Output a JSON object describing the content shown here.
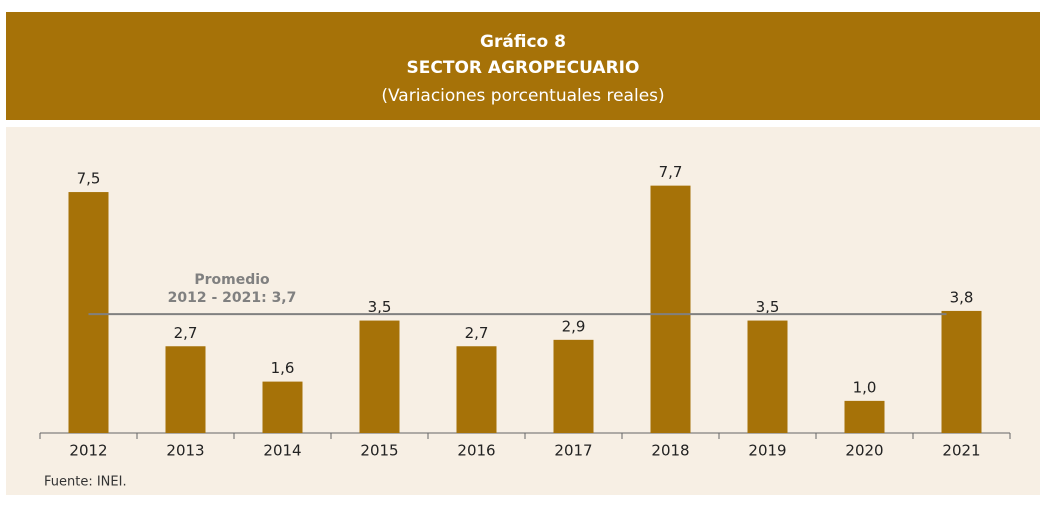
{
  "chart_data": {
    "type": "bar",
    "title": "Gráfico 8",
    "subtitle": "SECTOR AGROPECUARIO",
    "subtitle2": "(Variaciones porcentuales reales)",
    "categories": [
      "2012",
      "2013",
      "2014",
      "2015",
      "2016",
      "2017",
      "2018",
      "2019",
      "2020",
      "2021"
    ],
    "values": [
      7.5,
      2.7,
      1.6,
      3.5,
      2.7,
      2.9,
      7.7,
      3.5,
      1.0,
      3.8
    ],
    "value_labels": [
      "7,5",
      "2,7",
      "1,6",
      "3,5",
      "2,7",
      "2,9",
      "7,7",
      "3,5",
      "1,0",
      "3,8"
    ],
    "color": "#a67208",
    "ylim": [
      0,
      8
    ],
    "average": {
      "value": 3.7,
      "label": "Promedio",
      "sublabel": "2012 - 2021: 3,7",
      "color": "#808080"
    },
    "source": "Fuente: INEI."
  }
}
